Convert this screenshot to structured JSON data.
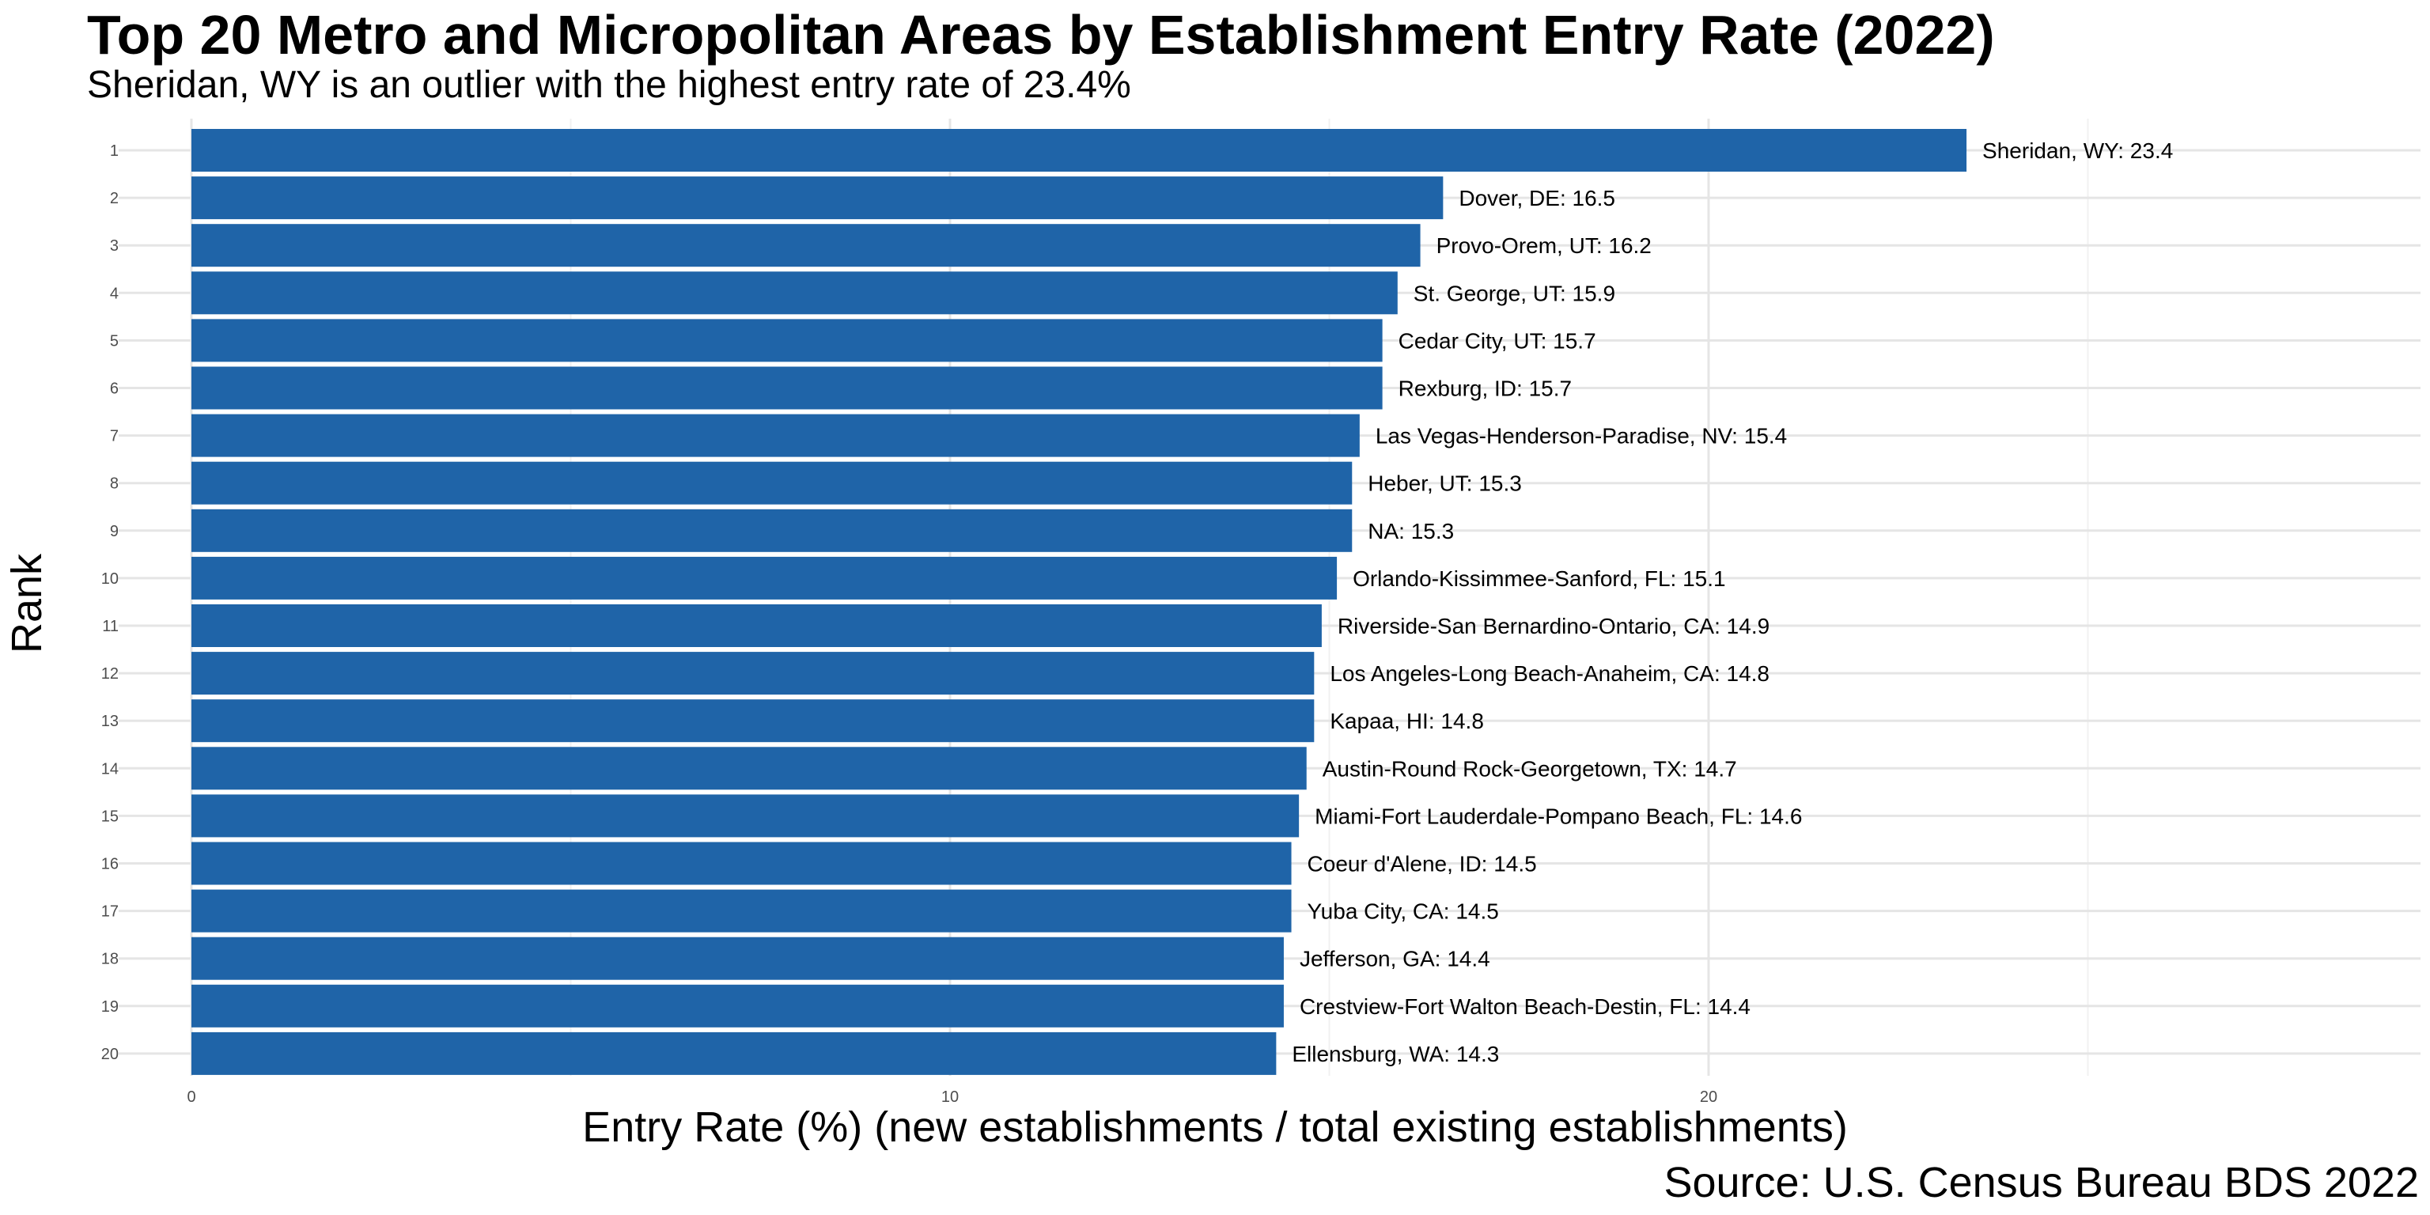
{
  "chart_data": {
    "type": "bar",
    "orientation": "horizontal",
    "title": "Top 20 Metro and Micropolitan Areas by Establishment Entry Rate (2022)",
    "subtitle": "Sheridan, WY is an outlier with the highest entry rate of 23.4%",
    "xlabel": "Entry Rate (%) (new establishments / total existing establishments)",
    "ylabel": "Rank",
    "caption": "Source: U.S. Census Bureau BDS 2022",
    "xlim": [
      0,
      29
    ],
    "xticks": [
      0,
      10,
      20
    ],
    "grid": true,
    "bar_color": "#1f64a8",
    "categories": [
      "1",
      "2",
      "3",
      "4",
      "5",
      "6",
      "7",
      "8",
      "9",
      "10",
      "11",
      "12",
      "13",
      "14",
      "15",
      "16",
      "17",
      "18",
      "19",
      "20"
    ],
    "values": [
      23.4,
      16.5,
      16.2,
      15.9,
      15.7,
      15.7,
      15.4,
      15.3,
      15.3,
      15.1,
      14.9,
      14.8,
      14.8,
      14.7,
      14.6,
      14.5,
      14.5,
      14.4,
      14.4,
      14.3
    ],
    "labels": [
      "Sheridan, WY: 23.4",
      "Dover, DE: 16.5",
      "Provo-Orem, UT: 16.2",
      "St. George, UT: 15.9",
      "Cedar City, UT: 15.7",
      "Rexburg, ID: 15.7",
      "Las Vegas-Henderson-Paradise, NV: 15.4",
      "Heber, UT: 15.3",
      "NA: 15.3",
      "Orlando-Kissimmee-Sanford, FL: 15.1",
      "Riverside-San Bernardino-Ontario, CA: 14.9",
      "Los Angeles-Long Beach-Anaheim, CA: 14.8",
      "Kapaa, HI: 14.8",
      "Austin-Round Rock-Georgetown, TX: 14.7",
      "Miami-Fort Lauderdale-Pompano Beach, FL: 14.6",
      "Coeur d'Alene, ID: 14.5",
      "Yuba City, CA: 14.5",
      "Jefferson, GA: 14.4",
      "Crestview-Fort Walton Beach-Destin, FL: 14.4",
      "Ellensburg, WA: 14.3"
    ]
  }
}
